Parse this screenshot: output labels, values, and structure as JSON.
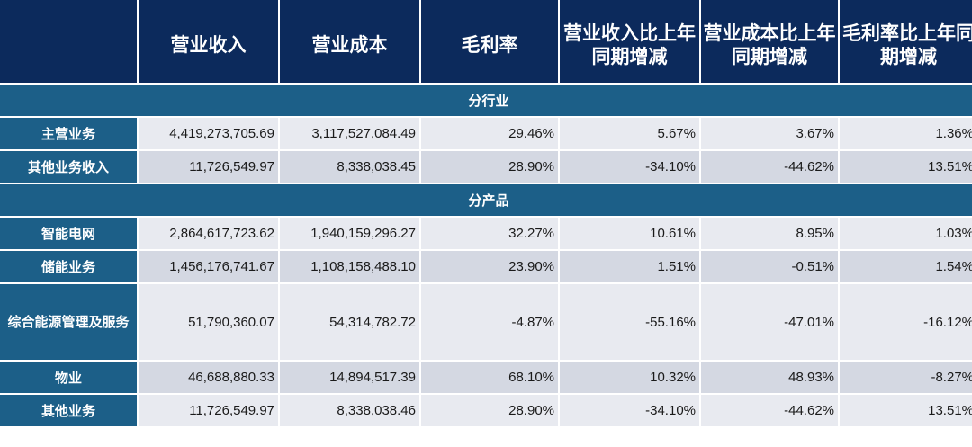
{
  "headers": [
    "",
    "营业收入",
    "营业成本",
    "毛利率",
    "营业收入比上年同期增减",
    "营业成本比上年同期增减",
    "毛利率比上年同期增减"
  ],
  "sections": [
    {
      "title": "分行业",
      "rows": [
        {
          "label": "主营业务",
          "values": [
            "4,419,273,705.69",
            "3,117,527,084.49",
            "29.46%",
            "5.67%",
            "3.67%",
            "1.36%"
          ]
        },
        {
          "label": "其他业务收入",
          "values": [
            "11,726,549.97",
            "8,338,038.45",
            "28.90%",
            "-34.10%",
            "-44.62%",
            "13.51%"
          ]
        }
      ]
    },
    {
      "title": "分产品",
      "rows": [
        {
          "label": "智能电网",
          "values": [
            "2,864,617,723.62",
            "1,940,159,296.27",
            "32.27%",
            "10.61%",
            "8.95%",
            "1.03%"
          ]
        },
        {
          "label": "储能业务",
          "values": [
            "1,456,176,741.67",
            "1,108,158,488.10",
            "23.90%",
            "1.51%",
            "-0.51%",
            "1.54%"
          ]
        },
        {
          "label": "综合能源管理及服务",
          "values": [
            "51,790,360.07",
            "54,314,782.72",
            "-4.87%",
            "-55.16%",
            "-47.01%",
            "-16.12%"
          ]
        },
        {
          "label": "物业",
          "values": [
            "46,688,880.33",
            "14,894,517.39",
            "68.10%",
            "10.32%",
            "48.93%",
            "-8.27%"
          ]
        },
        {
          "label": "其他业务",
          "values": [
            "11,726,549.97",
            "8,338,038.46",
            "28.90%",
            "-34.10%",
            "-44.62%",
            "13.51%"
          ]
        }
      ]
    }
  ]
}
